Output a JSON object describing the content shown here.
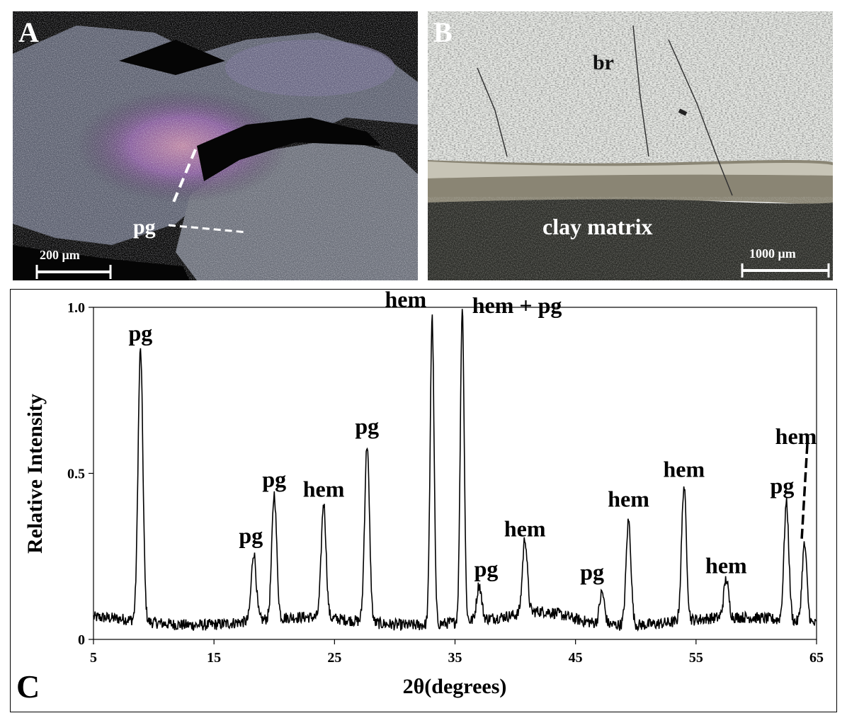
{
  "panel_a": {
    "letter": "A",
    "label_pg": "pg",
    "scale": "200 μm"
  },
  "panel_b": {
    "letter": "B",
    "label_br": "br",
    "label_clay": "clay matrix",
    "scale": "1000 μm"
  },
  "panel_c": {
    "letter": "C"
  },
  "chart_data": {
    "type": "line",
    "title": "",
    "xlabel": "2θ(degrees)",
    "ylabel": "Relative Intensity",
    "xlim": [
      5,
      65
    ],
    "ylim": [
      0,
      1.0
    ],
    "x_ticks": [
      "5",
      "15",
      "25",
      "35",
      "45",
      "55",
      "65"
    ],
    "y_ticks": [
      "0",
      "0.5",
      "1.0"
    ],
    "baseline": 0.055,
    "peaks": [
      {
        "x": 8.9,
        "y": 0.87,
        "label": "pg"
      },
      {
        "x": 18.3,
        "y": 0.26,
        "label": "pg"
      },
      {
        "x": 20.0,
        "y": 0.43,
        "label": "pg"
      },
      {
        "x": 24.1,
        "y": 0.4,
        "label": "hem"
      },
      {
        "x": 27.7,
        "y": 0.59,
        "label": "pg"
      },
      {
        "x": 33.1,
        "y": 0.98,
        "label": "hem"
      },
      {
        "x": 35.6,
        "y": 1.0,
        "label": "hem + pg"
      },
      {
        "x": 37.0,
        "y": 0.16,
        "label": "pg"
      },
      {
        "x": 40.8,
        "y": 0.28,
        "label": "hem"
      },
      {
        "x": 47.2,
        "y": 0.15,
        "label": "pg"
      },
      {
        "x": 49.4,
        "y": 0.37,
        "label": "hem"
      },
      {
        "x": 54.0,
        "y": 0.46,
        "label": "hem"
      },
      {
        "x": 57.5,
        "y": 0.17,
        "label": "hem"
      },
      {
        "x": 62.5,
        "y": 0.41,
        "label": "pg"
      },
      {
        "x": 64.0,
        "y": 0.29,
        "label": "hem"
      }
    ]
  }
}
